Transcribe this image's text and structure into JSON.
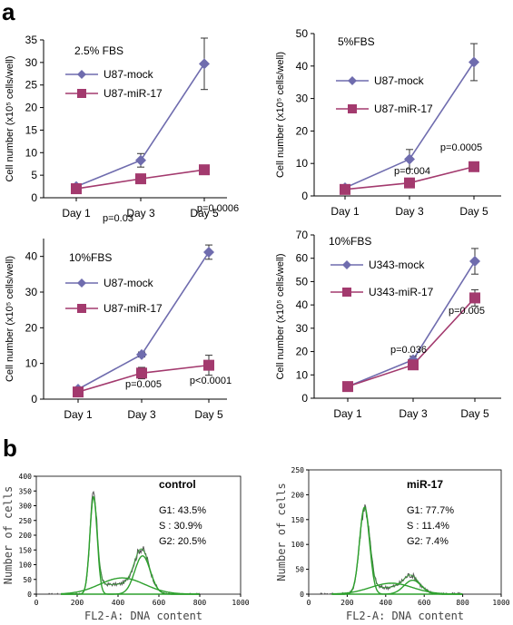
{
  "panel_labels": {
    "a": "a",
    "b": "b"
  },
  "colors": {
    "mock": "#6f6cae",
    "mir": "#a33a6e",
    "hist_data": "#555555",
    "hist_fit": "#2ea02e"
  },
  "chart_data": [
    {
      "type": "line",
      "annotation": "2.5% FBS",
      "ylabel": "Cell number (x10⁵ cells/well)",
      "categories": [
        "Day 1",
        "Day 3",
        "Day 5"
      ],
      "ylim": [
        0,
        35
      ],
      "yticks": [
        "0",
        "5",
        "10",
        "15",
        "20",
        "25",
        "30",
        "35"
      ],
      "series": [
        {
          "name": "U87-mock",
          "values": [
            2.5,
            8.3,
            29.7
          ],
          "errors": [
            0.5,
            1.5,
            5.7
          ]
        },
        {
          "name": "U87-miR-17",
          "values": [
            2.0,
            4.2,
            6.2
          ],
          "errors": [
            0.5,
            0.5,
            0.5
          ]
        }
      ],
      "pvalues": [
        "",
        "p=0.03",
        "p=0.0006"
      ]
    },
    {
      "type": "line",
      "annotation": "5%FBS",
      "ylabel": "Cell number (x10⁵ cells/well)",
      "categories": [
        "Day 1",
        "Day 3",
        "Day 5"
      ],
      "ylim": [
        0,
        50
      ],
      "yticks": [
        "0",
        "10",
        "20",
        "30",
        "40",
        "50"
      ],
      "series": [
        {
          "name": "U87-mock",
          "values": [
            2.5,
            11.3,
            41.2
          ],
          "errors": [
            0.5,
            3.0,
            5.7
          ]
        },
        {
          "name": "U87-miR-17",
          "values": [
            2.0,
            4.0,
            9.0
          ],
          "errors": [
            0.5,
            0.6,
            0.8
          ]
        }
      ],
      "pvalues": [
        "",
        "p=0.004",
        "p=0.0005"
      ]
    },
    {
      "type": "line",
      "annotation": "10%FBS",
      "ylabel": "Cell number (x10⁵ cells/well)",
      "categories": [
        "Day 1",
        "Day 3",
        "Day 5"
      ],
      "ylim": [
        0,
        45
      ],
      "yticks": [
        "0",
        "10",
        "20",
        "30",
        "40"
      ],
      "series": [
        {
          "name": "U87-mock",
          "values": [
            2.8,
            12.5,
            41.2
          ],
          "errors": [
            0.5,
            0.7,
            2.0
          ]
        },
        {
          "name": "U87-miR-17",
          "values": [
            2.0,
            7.3,
            9.5
          ],
          "errors": [
            0.5,
            1.6,
            2.8
          ]
        }
      ],
      "pvalues": [
        "",
        "p=0.005",
        "p<0.0001"
      ]
    },
    {
      "type": "line",
      "annotation": "10%FBS",
      "ylabel": "Cell number (x10⁵ cells/well)",
      "categories": [
        "Day 1",
        "Day 3",
        "Day 5"
      ],
      "ylim": [
        0,
        70
      ],
      "yticks": [
        "0",
        "10",
        "20",
        "30",
        "40",
        "50",
        "60",
        "70"
      ],
      "series": [
        {
          "name": "U343-mock",
          "values": [
            5.0,
            16.5,
            58.7
          ],
          "errors": [
            0.5,
            1.5,
            5.5
          ]
        },
        {
          "name": "U343-miR-17",
          "values": [
            5.0,
            14.3,
            43.0
          ],
          "errors": [
            0.5,
            1.2,
            3.5
          ]
        }
      ],
      "pvalues": [
        "",
        "p=0.036",
        "p=0.005"
      ]
    },
    {
      "type": "area",
      "title": "control",
      "xlabel": "FL2-A: DNA content",
      "ylabel": "Number of cells",
      "xlim": [
        0,
        1000
      ],
      "ylim": [
        0,
        400
      ],
      "xticks": [
        "0",
        "200",
        "400",
        "600",
        "800",
        "1000"
      ],
      "yticks": [
        "0",
        "50",
        "100",
        "150",
        "200",
        "250",
        "300",
        "350",
        "400"
      ],
      "stats": [
        "G1: 43.5%",
        "S :  30.9%",
        "G2: 20.5%"
      ],
      "g1": {
        "center": 280,
        "height": 330,
        "width": 18
      },
      "s": {
        "center": 420,
        "height": 55,
        "width": 110
      },
      "g2": {
        "center": 520,
        "height": 130,
        "width": 38
      }
    },
    {
      "type": "area",
      "title": "miR-17",
      "xlabel": "FL2-A: DNA content",
      "ylabel": "Number of cells",
      "xlim": [
        0,
        1000
      ],
      "ylim": [
        0,
        250
      ],
      "xticks": [
        "0",
        "200",
        "400",
        "600",
        "800",
        "1000"
      ],
      "yticks": [
        "0",
        "50",
        "100",
        "150",
        "200",
        "250"
      ],
      "stats": [
        "G1: 77.7%",
        "S :  11.4%",
        "G2: 7.4%"
      ],
      "g1": {
        "center": 290,
        "height": 175,
        "width": 26
      },
      "s": {
        "center": 430,
        "height": 22,
        "width": 110
      },
      "g2": {
        "center": 540,
        "height": 28,
        "width": 45
      }
    }
  ]
}
